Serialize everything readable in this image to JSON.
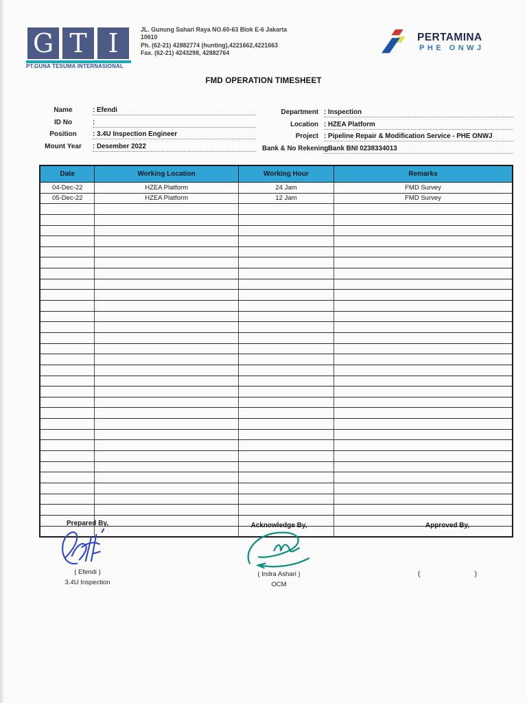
{
  "company": {
    "initials": [
      "G",
      "T",
      "I"
    ],
    "name_bar": "PT.GUNA TESUMA INTERNASIONAL",
    "address_lines": [
      "JL. Gunung Sahari Raya NO.60-63 Blok E-6 Jakarta",
      "10610",
      "Ph. (62-21) 42882774 (hunting),4221662,4221663",
      "Fax. (62-21) 4243298, 42882764"
    ]
  },
  "partner": {
    "name": "PERTAMINA",
    "subtitle": "PHE ONWJ"
  },
  "title": "FMD OPERATION TIMESHEET",
  "fields_left": [
    {
      "label": "Name",
      "value": ": Efendi"
    },
    {
      "label": "ID No",
      "value": ":"
    },
    {
      "label": "Position",
      "value": ": 3.4U Inspection Engineer"
    },
    {
      "label": "Mount Year",
      "value": ": Desember 2022"
    }
  ],
  "fields_right": [
    {
      "label": "Department",
      "value": ": Inspection"
    },
    {
      "label": "Location",
      "value": ": HZEA Platform"
    },
    {
      "label": "Project",
      "value": ": Pipeline Repair & Modification Service - PHE ONWJ"
    },
    {
      "label": "Bank & No Rekening",
      "value": ": Bank BNI 0238334013"
    }
  ],
  "table": {
    "headers": [
      "Date",
      "Working Location",
      "Working Hour",
      "Remarks"
    ],
    "rows": [
      [
        "04-Dec-22",
        "HZEA Platform",
        "24 Jam",
        "FMD Survey"
      ],
      [
        "05-Dec-22",
        "HZEA Platform",
        "12 Jam",
        "FMD Survey"
      ]
    ],
    "empty_row_count": 31
  },
  "signatures": {
    "prepared": {
      "title": "Prepared By,",
      "name": "( Efendi )",
      "role": "3.4U Inspection"
    },
    "acknowledge": {
      "title": "Acknowledge By,",
      "name": "( Indra Ashari )",
      "role": "OCM"
    },
    "approved": {
      "title": "Approved By,",
      "open": "(",
      "close": ")"
    }
  },
  "colors": {
    "table_header_fill": "#2fa5d6",
    "gti_square": "#4d5a85",
    "gti_bar_teal": "#18a9b5",
    "gti_text_blue": "#2b4fa8",
    "pertamina_navy": "#1e2c52",
    "phe_blue": "#2f74ba",
    "pertamina_red": "#cc3a33",
    "pertamina_yellow": "#dede52",
    "pertamina_blue": "#1c55a5",
    "signature_blue": "#2b46c8",
    "signature_teal": "#0e8e82"
  }
}
